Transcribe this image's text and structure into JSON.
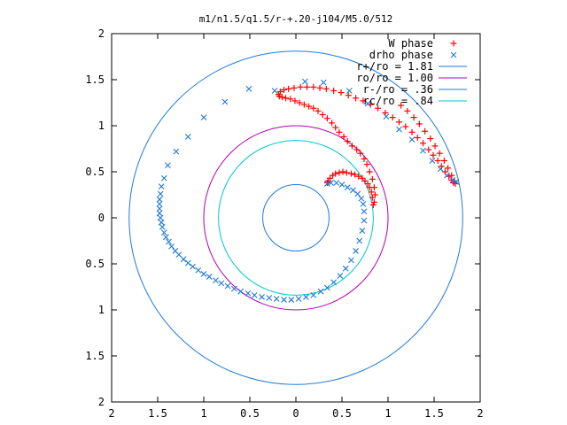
{
  "chart_data": {
    "type": "scatter",
    "title": "m1/n1.5/q1.5/r-+.20-j104/M5.0/512",
    "xlim": [
      -2,
      2
    ],
    "ylim": [
      -2,
      2
    ],
    "x_ticks": [
      {
        "value": -2,
        "label": "2"
      },
      {
        "value": -1.5,
        "label": "1.5"
      },
      {
        "value": -1,
        "label": "1"
      },
      {
        "value": -0.5,
        "label": "0.5"
      },
      {
        "value": 0,
        "label": "0"
      },
      {
        "value": 0.5,
        "label": "0.5"
      },
      {
        "value": 1,
        "label": "1"
      },
      {
        "value": 1.5,
        "label": "1.5"
      },
      {
        "value": 2,
        "label": "2"
      }
    ],
    "y_ticks": [
      {
        "value": 2,
        "label": "2"
      },
      {
        "value": 1.5,
        "label": "1.5"
      },
      {
        "value": 1,
        "label": "1"
      },
      {
        "value": 0.5,
        "label": "0.5"
      },
      {
        "value": 0,
        "label": "0"
      },
      {
        "value": -0.5,
        "label": "0.5"
      },
      {
        "value": -1,
        "label": "1"
      },
      {
        "value": -1.5,
        "label": "1.5"
      },
      {
        "value": -2,
        "label": "2"
      }
    ],
    "grid": false,
    "legend_position": "top-right",
    "series": [
      {
        "name": "W phase",
        "marker": "+",
        "color": "#ff0000",
        "points": [
          [
            0.84,
            0.14
          ],
          [
            0.83,
            0.22
          ],
          [
            0.82,
            0.28
          ],
          [
            0.8,
            0.33
          ],
          [
            0.78,
            0.37
          ],
          [
            0.75,
            0.4
          ],
          [
            0.72,
            0.43
          ],
          [
            0.68,
            0.45
          ],
          [
            0.64,
            0.47
          ],
          [
            0.6,
            0.48
          ],
          [
            0.55,
            0.49
          ],
          [
            0.51,
            0.5
          ],
          [
            0.47,
            0.49
          ],
          [
            0.43,
            0.48
          ],
          [
            0.4,
            0.46
          ],
          [
            0.37,
            0.43
          ],
          [
            0.35,
            0.4
          ],
          [
            0.34,
            0.38
          ],
          [
            0.85,
            0.17
          ],
          [
            0.86,
            0.25
          ],
          [
            0.85,
            0.33
          ],
          [
            0.83,
            0.42
          ],
          [
            0.8,
            0.5
          ],
          [
            0.77,
            0.58
          ],
          [
            0.74,
            0.64
          ],
          [
            0.7,
            0.7
          ],
          [
            0.66,
            0.74
          ],
          [
            0.61,
            0.78
          ],
          [
            0.56,
            0.83
          ],
          [
            0.52,
            0.88
          ],
          [
            0.47,
            0.93
          ],
          [
            0.43,
            0.98
          ],
          [
            0.39,
            1.03
          ],
          [
            0.34,
            1.08
          ],
          [
            0.29,
            1.12
          ],
          [
            0.24,
            1.16
          ],
          [
            0.19,
            1.19
          ],
          [
            0.14,
            1.21
          ],
          [
            0.09,
            1.23
          ],
          [
            0.04,
            1.25
          ],
          [
            -0.01,
            1.27
          ],
          [
            -0.06,
            1.29
          ],
          [
            -0.11,
            1.3
          ],
          [
            -0.15,
            1.31
          ],
          [
            -0.18,
            1.32
          ],
          [
            -0.19,
            1.34
          ],
          [
            -0.17,
            1.37
          ],
          [
            -0.13,
            1.39
          ],
          [
            -0.08,
            1.4
          ],
          [
            -0.02,
            1.41
          ],
          [
            0.05,
            1.42
          ],
          [
            0.12,
            1.42
          ],
          [
            0.19,
            1.42
          ],
          [
            0.26,
            1.41
          ],
          [
            0.33,
            1.4
          ],
          [
            0.41,
            1.38
          ],
          [
            0.49,
            1.36
          ],
          [
            0.57,
            1.33
          ],
          [
            0.65,
            1.3
          ],
          [
            0.73,
            1.27
          ],
          [
            0.81,
            1.23
          ],
          [
            0.89,
            1.19
          ],
          [
            0.97,
            1.14
          ],
          [
            1.05,
            1.09
          ],
          [
            1.12,
            1.04
          ],
          [
            1.19,
            0.99
          ],
          [
            1.26,
            0.93
          ],
          [
            1.32,
            0.87
          ],
          [
            1.38,
            0.81
          ],
          [
            1.44,
            0.74
          ],
          [
            1.49,
            0.68
          ],
          [
            1.54,
            0.62
          ],
          [
            1.58,
            0.56
          ],
          [
            1.62,
            0.5
          ],
          [
            1.66,
            0.45
          ],
          [
            1.69,
            0.41
          ],
          [
            1.71,
            0.38
          ],
          [
            1.73,
            0.37
          ],
          [
            1.72,
            0.4
          ],
          [
            1.69,
            0.46
          ],
          [
            1.65,
            0.54
          ],
          [
            1.61,
            0.62
          ],
          [
            1.56,
            0.7
          ],
          [
            1.51,
            0.78
          ],
          [
            1.46,
            0.86
          ],
          [
            1.4,
            0.94
          ],
          [
            1.34,
            1.02
          ],
          [
            1.28,
            1.09
          ],
          [
            1.21,
            1.16
          ],
          [
            1.14,
            1.22
          ]
        ]
      },
      {
        "name": "drho phase",
        "marker": "x",
        "color": "#1f7ad8",
        "points": [
          [
            -0.23,
            1.38
          ],
          [
            -0.51,
            1.4
          ],
          [
            -0.77,
            1.26
          ],
          [
            -1.0,
            1.09
          ],
          [
            -1.17,
            0.88
          ],
          [
            -1.3,
            0.72
          ],
          [
            -1.39,
            0.57
          ],
          [
            -1.43,
            0.43
          ],
          [
            -1.46,
            0.34
          ],
          [
            -1.47,
            0.26
          ],
          [
            -1.48,
            0.2
          ],
          [
            -1.48,
            0.15
          ],
          [
            -1.48,
            0.1
          ],
          [
            -1.48,
            0.05
          ],
          [
            -1.47,
            0.0
          ],
          [
            -1.46,
            -0.05
          ],
          [
            -1.45,
            -0.1
          ],
          [
            -1.43,
            -0.16
          ],
          [
            -1.41,
            -0.21
          ],
          [
            -1.38,
            -0.26
          ],
          [
            -1.35,
            -0.31
          ],
          [
            -1.31,
            -0.36
          ],
          [
            -1.27,
            -0.4
          ],
          [
            -1.22,
            -0.45
          ],
          [
            -1.17,
            -0.49
          ],
          [
            -1.12,
            -0.53
          ],
          [
            -1.06,
            -0.57
          ],
          [
            -1.0,
            -0.61
          ],
          [
            -0.94,
            -0.64
          ],
          [
            -0.87,
            -0.68
          ],
          [
            -0.81,
            -0.71
          ],
          [
            -0.74,
            -0.74
          ],
          [
            -0.67,
            -0.77
          ],
          [
            -0.6,
            -0.8
          ],
          [
            -0.52,
            -0.82
          ],
          [
            -0.45,
            -0.84
          ],
          [
            -0.37,
            -0.86
          ],
          [
            -0.29,
            -0.87
          ],
          [
            -0.21,
            -0.88
          ],
          [
            -0.13,
            -0.89
          ],
          [
            -0.05,
            -0.89
          ],
          [
            0.03,
            -0.88
          ],
          [
            0.11,
            -0.86
          ],
          [
            0.19,
            -0.84
          ],
          [
            0.27,
            -0.8
          ],
          [
            0.34,
            -0.76
          ],
          [
            0.41,
            -0.7
          ],
          [
            0.48,
            -0.63
          ],
          [
            0.54,
            -0.55
          ],
          [
            0.6,
            -0.46
          ],
          [
            0.65,
            -0.36
          ],
          [
            0.69,
            -0.25
          ],
          [
            0.72,
            -0.14
          ],
          [
            0.74,
            -0.03
          ],
          [
            0.74,
            0.07
          ],
          [
            0.73,
            0.15
          ],
          [
            0.71,
            0.21
          ],
          [
            0.67,
            0.26
          ],
          [
            0.62,
            0.3
          ],
          [
            0.56,
            0.33
          ],
          [
            0.5,
            0.36
          ],
          [
            0.44,
            0.38
          ],
          [
            0.38,
            0.38
          ],
          [
            0.34,
            0.37
          ],
          [
            0.3,
            1.47
          ],
          [
            0.1,
            1.48
          ],
          [
            0.58,
            1.38
          ],
          [
            0.78,
            1.24
          ],
          [
            0.98,
            1.1
          ],
          [
            1.12,
            0.96
          ],
          [
            1.26,
            0.85
          ],
          [
            1.38,
            0.73
          ],
          [
            1.48,
            0.62
          ],
          [
            1.57,
            0.53
          ],
          [
            1.64,
            0.46
          ],
          [
            1.7,
            0.41
          ],
          [
            1.74,
            0.39
          ]
        ]
      }
    ],
    "circles": [
      {
        "name": "r+/ro = 1.81",
        "radius": 1.81,
        "color": "#1f7ad8"
      },
      {
        "name": "ro/ro = 1.00",
        "radius": 1.0,
        "color": "#b000b0"
      },
      {
        "name": "r-/ro = .36",
        "radius": 0.36,
        "color": "#1f7ad8"
      },
      {
        "name": "rc/ro = .84",
        "radius": 0.84,
        "color": "#00c8c8"
      }
    ]
  }
}
